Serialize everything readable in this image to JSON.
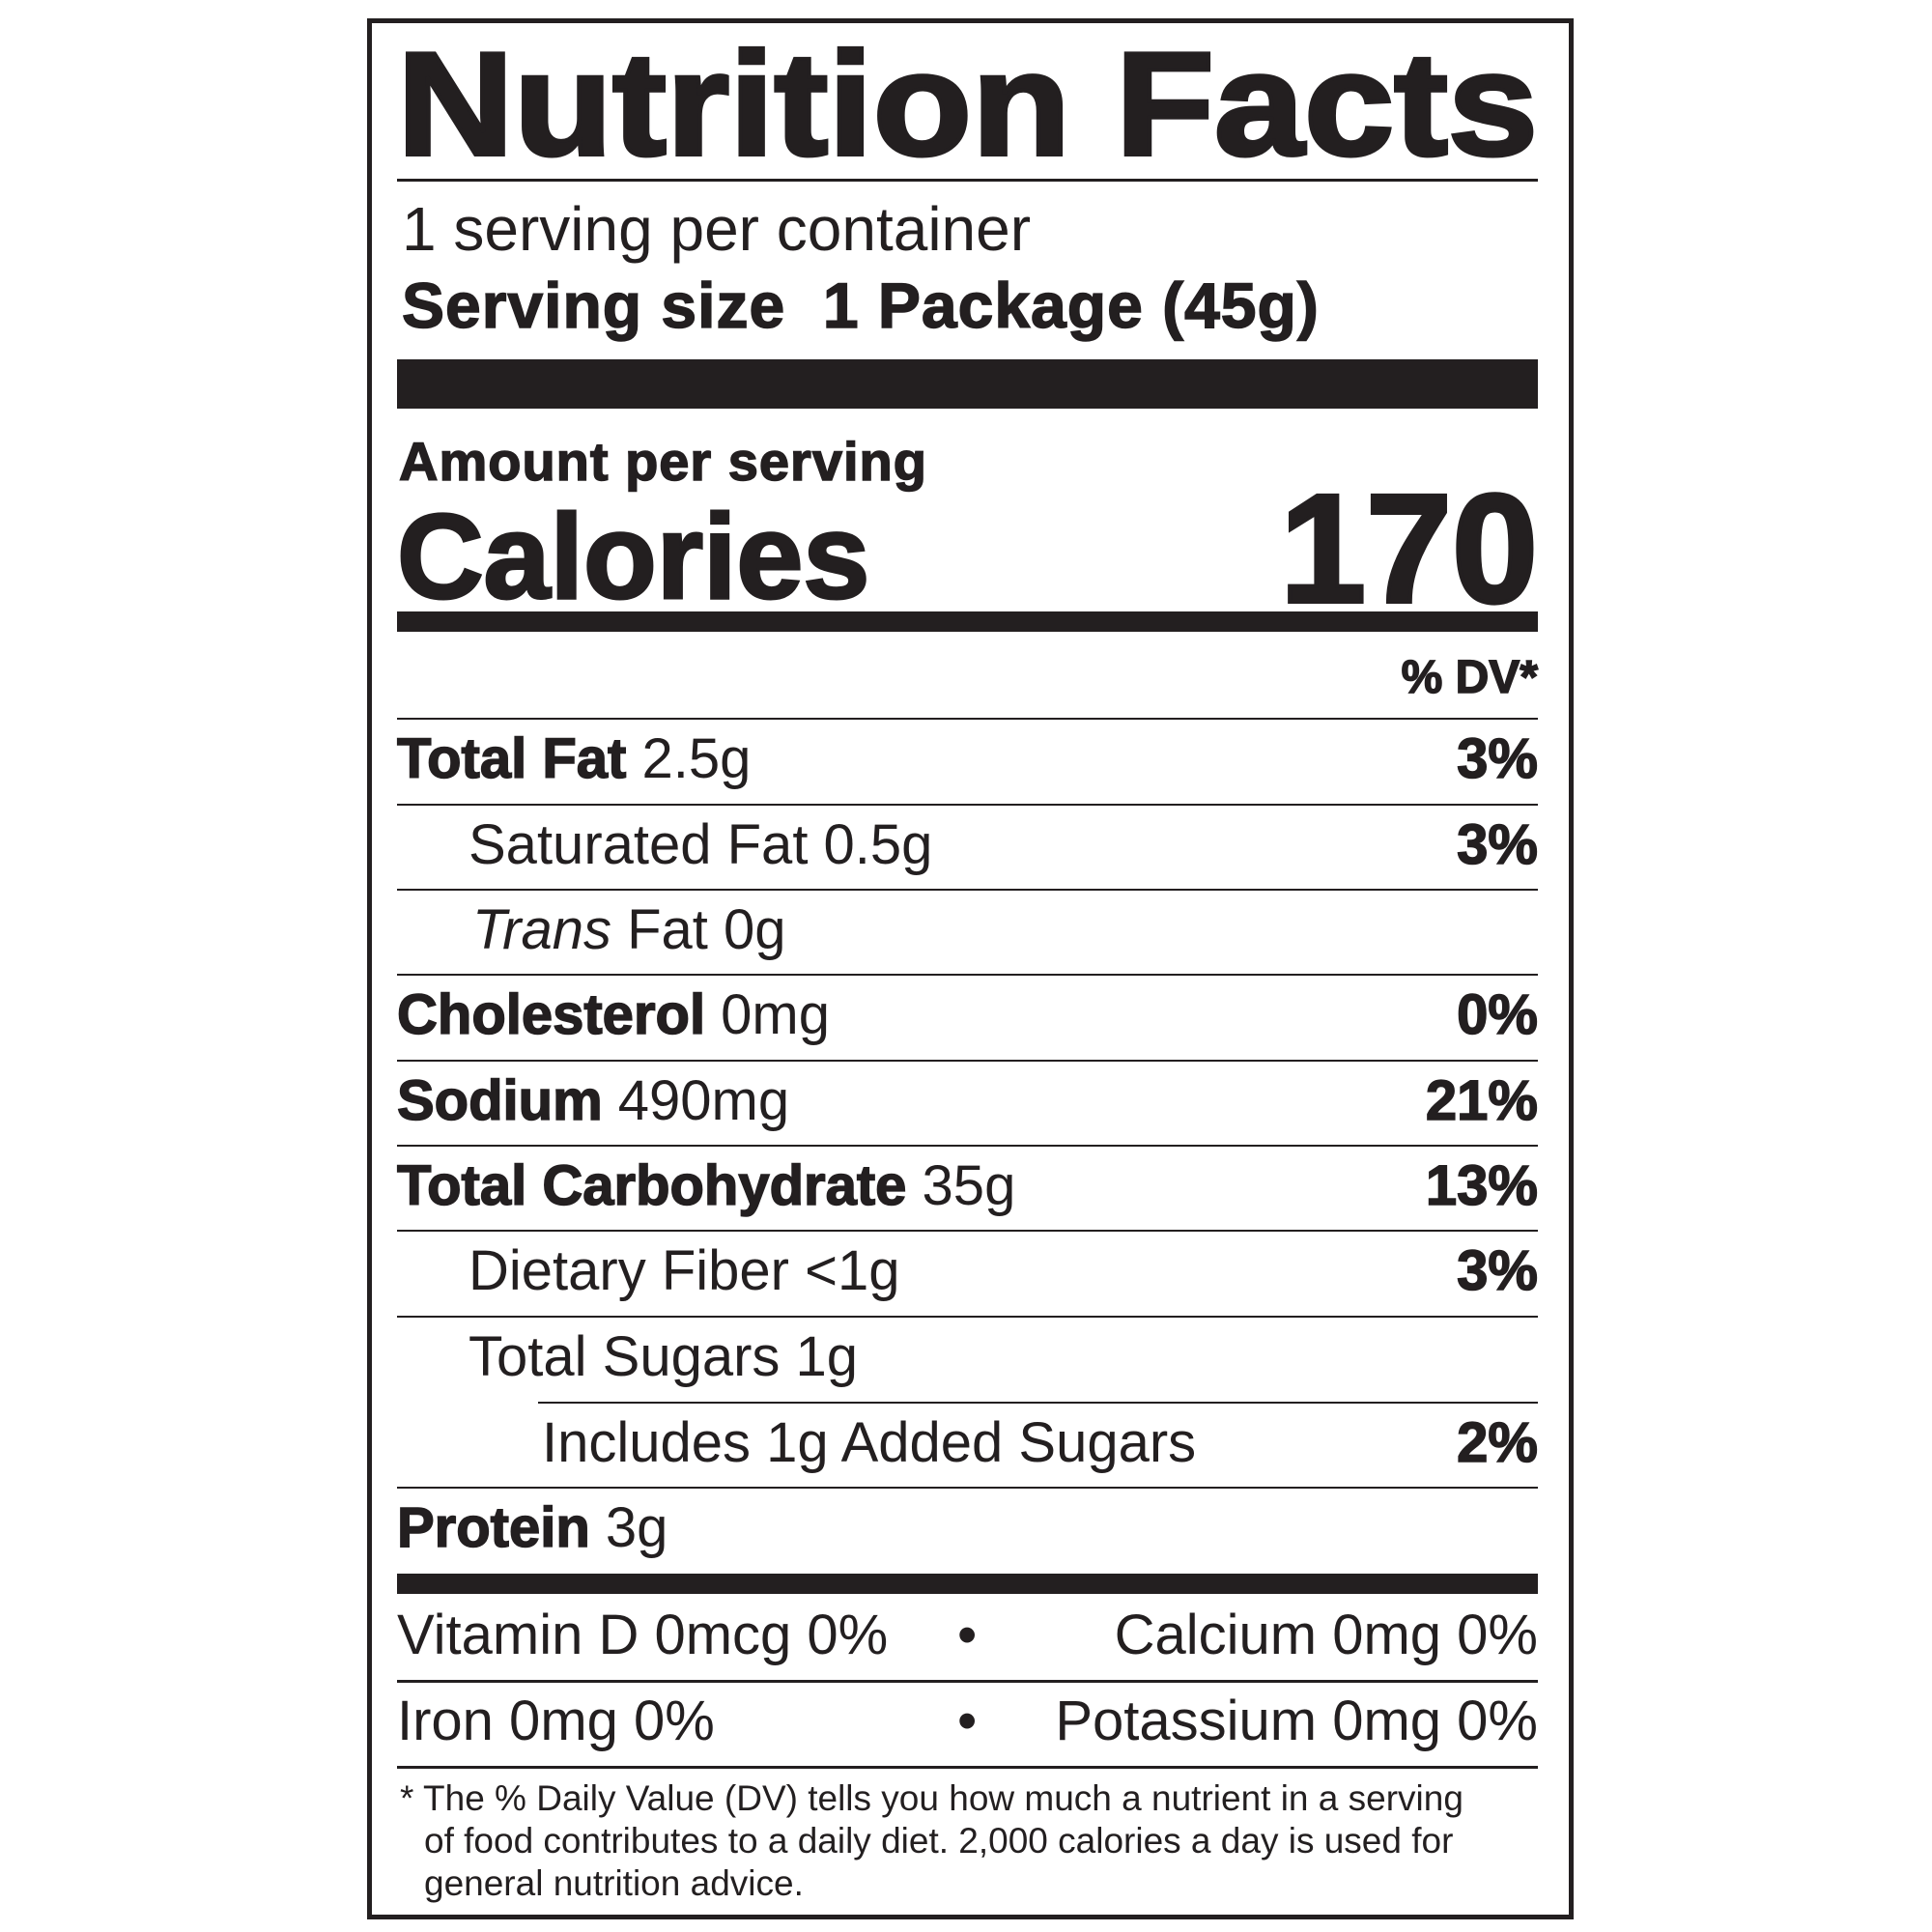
{
  "title": "Nutrition Facts",
  "servings_per_container": "1 serving per container",
  "serving_size_label": "Serving size",
  "serving_size_value": "1 Package (45g)",
  "amount_per_serving": "Amount per serving",
  "calories_label": "Calories",
  "calories_value": "170",
  "dv_header": "% DV*",
  "rows": [
    {
      "name": "Total Fat",
      "amount": " 2.5g",
      "dv": "3%"
    },
    {
      "name": "",
      "amount": "Saturated Fat 0.5g",
      "dv": "3%"
    },
    {
      "italic": "Trans",
      "amount": " Fat 0g",
      "dv": ""
    },
    {
      "name": "Cholesterol",
      "amount": " 0mg",
      "dv": "0%"
    },
    {
      "name": "Sodium",
      "amount": " 490mg",
      "dv": "21%"
    },
    {
      "name": "Total Carbohydrate",
      "amount": " 35g",
      "dv": "13%"
    },
    {
      "name": "",
      "amount": "Dietary Fiber <1g",
      "dv": "3%"
    },
    {
      "name": "",
      "amount": "Total Sugars 1g",
      "dv": ""
    },
    {
      "name": "",
      "amount": "Includes 1g Added Sugars",
      "dv": "2%"
    },
    {
      "name": "Protein",
      "amount": " 3g",
      "dv": ""
    }
  ],
  "micros": [
    {
      "left": "Vitamin D 0mcg 0%",
      "right": "Calcium 0mg 0%"
    },
    {
      "left": "Iron 0mg 0%",
      "right": "Potassium 0mg 0%"
    }
  ],
  "separator": "•",
  "footnote": [
    "* The % Daily Value (DV) tells you how much a nutrient in a serving",
    "of food contributes to a daily diet. 2,000 calories a day is used for",
    "general nutrition advice."
  ]
}
